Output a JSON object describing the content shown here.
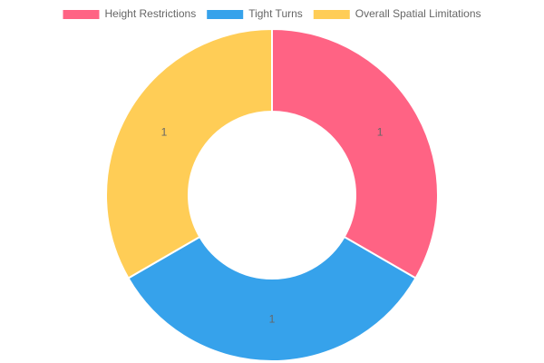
{
  "chart_data": {
    "type": "doughnut",
    "categories": [
      "Height Restrictions",
      "Tight Turns",
      "Overall Spatial Limitations"
    ],
    "values": [
      1,
      1,
      1
    ],
    "colors": [
      "#ff6384",
      "#36a2eb",
      "#ffcd56"
    ],
    "legend": "top"
  }
}
